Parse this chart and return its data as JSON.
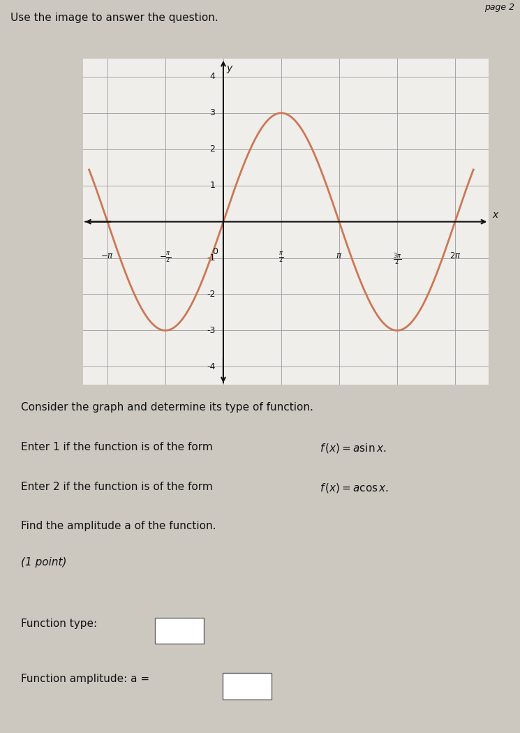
{
  "title_top": "Use the image to answer the question.",
  "page_label": "page 2",
  "graph_bg": "#f0eeea",
  "curve_color": "#cc7755",
  "curve_linewidth": 2.0,
  "amplitude": 3,
  "function_type": "sin",
  "xlim": [
    -3.8,
    7.2
  ],
  "ylim": [
    -4.5,
    4.5
  ],
  "yticks": [
    -4,
    -3,
    -2,
    -1,
    1,
    2,
    3,
    4
  ],
  "xtick_vals": [
    -3.14159,
    -1.5708,
    0,
    1.5708,
    3.14159,
    4.71239,
    6.28318
  ],
  "grid_color": "#999999",
  "axis_color": "#111111",
  "text_color": "#111111",
  "body_bg": "#ccc8c0",
  "instructions_line0": "Consider the graph and determine its type of function.",
  "instructions_line1a": "Enter 1 if the function is of the form ",
  "instructions_line1b": "f (x) = a sin x.",
  "instructions_line2a": "Enter 2 if the function is of the form ",
  "instructions_line2b": "f (x) = a cos x.",
  "instructions_line3": "Find the amplitude a of the function.",
  "instructions_line4": "(1 point)",
  "answer_label1": "Function type:",
  "answer_label2": "Function amplitude: a ="
}
